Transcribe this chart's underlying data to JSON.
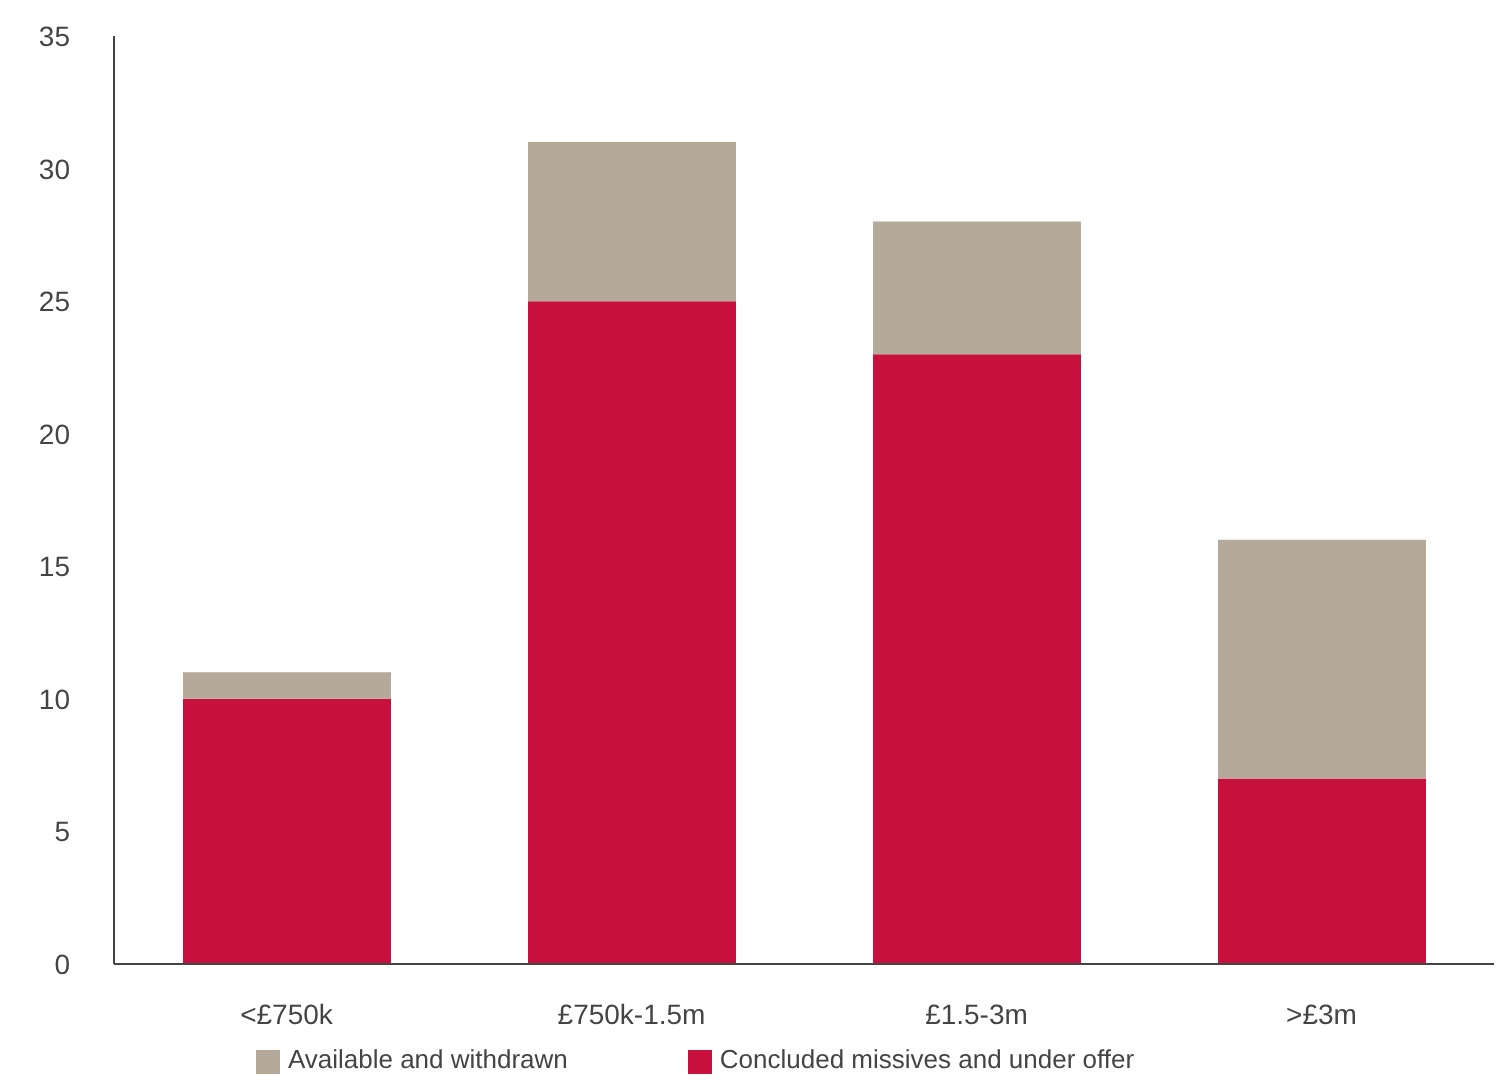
{
  "chart_data": {
    "type": "bar",
    "stacked": true,
    "categories": [
      "<£750k",
      "£750k-1.5m",
      "£1.5-3m",
      ">£3m"
    ],
    "series": [
      {
        "name": "Concluded missives and under offer",
        "color": "#c8103e",
        "values": [
          10,
          25,
          23,
          7
        ]
      },
      {
        "name": "Available and withdrawn",
        "color": "#b5a99a",
        "values": [
          1,
          6,
          5,
          9
        ]
      }
    ],
    "ylim": [
      0,
      35
    ],
    "yticks": [
      0,
      5,
      10,
      15,
      20,
      25,
      30,
      35
    ],
    "grid": false,
    "legend": "bottom"
  }
}
